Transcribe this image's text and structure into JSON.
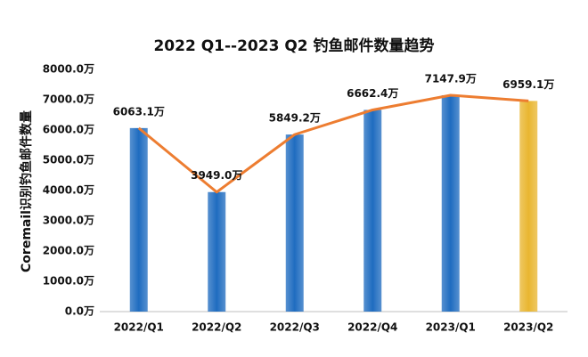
{
  "chart_data": {
    "type": "bar_line",
    "title": "2022 Q1--2023 Q2 钓鱼邮件数量趋势",
    "y_label": "Coremail识别钓鱼邮件数量",
    "categories": [
      "2022/Q1",
      "2022/Q2",
      "2022/Q3",
      "2022/Q4",
      "2023/Q1",
      "2023/Q2"
    ],
    "values": [
      6063.1,
      3949.0,
      5849.2,
      6662.4,
      7147.9,
      6959.1
    ],
    "value_labels": [
      "6063.1万",
      "3949.0万",
      "5849.2万",
      "6662.4万",
      "7147.9万",
      "6959.1万"
    ],
    "colors": [
      "#1f6cc0",
      "#1f6cc0",
      "#1f6cc0",
      "#1f6cc0",
      "#1f6cc0",
      "#e9b630"
    ],
    "line_color": "#ed7d31",
    "ylim": [
      0,
      8000
    ],
    "yticks": [
      {
        "value": 0,
        "label": "0.0万"
      },
      {
        "value": 1000,
        "label": "1000.0万"
      },
      {
        "value": 2000,
        "label": "2000.0万"
      },
      {
        "value": 3000,
        "label": "3000.0万"
      },
      {
        "value": 4000,
        "label": "4000.0万"
      },
      {
        "value": 5000,
        "label": "5000.0万"
      },
      {
        "value": 6000,
        "label": "6000.0万"
      },
      {
        "value": 7000,
        "label": "7000.0万"
      },
      {
        "value": 8000,
        "label": "8000.0万"
      }
    ],
    "grid": false
  }
}
